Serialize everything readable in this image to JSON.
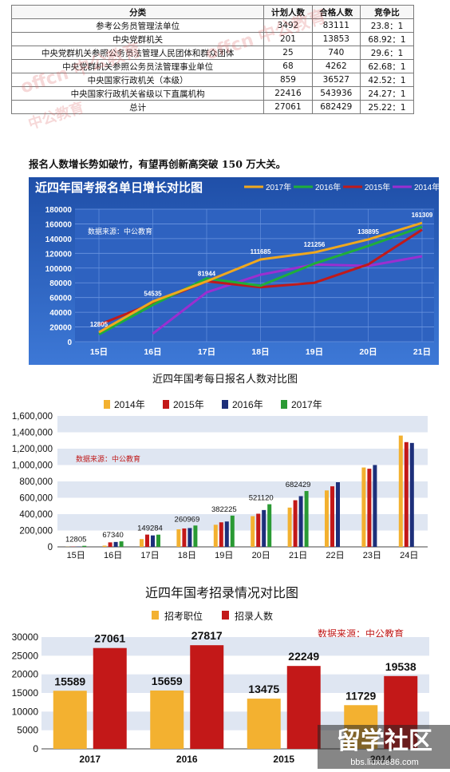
{
  "table": {
    "headers": [
      "分类",
      "计划人数",
      "合格人数",
      "竞争比"
    ],
    "rows": [
      [
        "参考公务员管理法单位",
        "3492",
        "83111",
        "23.8：1"
      ],
      [
        "中央党群机关",
        "201",
        "13853",
        "68.92：1"
      ],
      [
        "中央党群机关参照公务员法管理人民团体和群众团体",
        "25",
        "740",
        "29.6：1"
      ],
      [
        "中央党群机关参照公务员法管理事业单位",
        "68",
        "4262",
        "62.68：1"
      ],
      [
        "中央国家行政机关（本级）",
        "859",
        "36527",
        "42.52：1"
      ],
      [
        "中央国家行政机关省级以下直属机构",
        "22416",
        "543936",
        "24.27：1"
      ],
      [
        "总计",
        "27061",
        "682429",
        "25.22：1"
      ]
    ],
    "watermarks": [
      "offcn 中公教育",
      "offcn 中公教育",
      "中公教育"
    ]
  },
  "headline": "报名人数增长势如破竹，有望再创新高突破 150 万大关。",
  "chart_data": [
    {
      "type": "line",
      "title": "近四年国考报名单日增长对比图",
      "source_note": "数据来源：中公教育",
      "categories": [
        "15日",
        "16日",
        "17日",
        "18日",
        "19日",
        "20日",
        "21日"
      ],
      "ylim": [
        0,
        180000
      ],
      "yticks": [
        "0",
        "20000",
        "40000",
        "60000",
        "80000",
        "100000",
        "120000",
        "140000",
        "160000",
        "180000"
      ],
      "series": [
        {
          "name": "2017年",
          "color": "#f0a81e",
          "values": [
            12805,
            54535,
            81944,
            111685,
            121256,
            138895,
            161309
          ]
        },
        {
          "name": "2016年",
          "color": "#1fae3a",
          "values": [
            10000,
            50000,
            86000,
            76000,
            106000,
            130000,
            156000
          ]
        },
        {
          "name": "2015年",
          "color": "#c01a1a",
          "values": [
            23000,
            52000,
            82000,
            74000,
            80000,
            105000,
            152000
          ]
        },
        {
          "name": "2014年",
          "color": "#9b2fd0",
          "values": [
            null,
            11000,
            67000,
            91000,
            105000,
            103000,
            116000
          ]
        }
      ],
      "data_labels": [
        "12805",
        "54535",
        "81944",
        "111685",
        "121256",
        "138895",
        "161309"
      ]
    },
    {
      "type": "bar",
      "title": "近四年国考每日报名人数对比图",
      "source_note": "数据来源：中公教育",
      "categories": [
        "15日",
        "16日",
        "17日",
        "18日",
        "19日",
        "20日",
        "21日",
        "22日",
        "23日",
        "24日"
      ],
      "ylim": [
        0,
        1600000
      ],
      "yticks": [
        "0",
        "200,000",
        "400,000",
        "600,000",
        "800,000",
        "1,000,000",
        "1,200,000",
        "1,400,000",
        "1,600,000"
      ],
      "series": [
        {
          "name": "2014年",
          "color": "#f3b130",
          "values": [
            2000,
            15000,
            95000,
            215000,
            270000,
            375000,
            480000,
            690000,
            970000,
            1360000
          ]
        },
        {
          "name": "2015年",
          "color": "#c31818",
          "values": [
            3000,
            55000,
            150000,
            225000,
            300000,
            405000,
            570000,
            740000,
            955000,
            1280000
          ]
        },
        {
          "name": "2016年",
          "color": "#1d2f7a",
          "values": [
            4000,
            60000,
            140000,
            230000,
            310000,
            450000,
            620000,
            790000,
            1000000,
            1270000
          ]
        },
        {
          "name": "2017年",
          "color": "#2a9a34",
          "values": [
            12805,
            67340,
            149284,
            260969,
            382225,
            521120,
            682429,
            null,
            null,
            null
          ]
        }
      ],
      "data_labels": [
        "12805",
        "67340",
        "149284",
        "260969",
        "382225",
        "521120",
        "682429"
      ]
    },
    {
      "type": "bar",
      "title": "近四年国考招录情况对比图",
      "source_note": "数据来源：中公教育",
      "categories": [
        "2017",
        "2016",
        "2015",
        "2014"
      ],
      "ylim": [
        0,
        30000
      ],
      "yticks": [
        "0",
        "5000",
        "10000",
        "15000",
        "20000",
        "25000",
        "30000"
      ],
      "series": [
        {
          "name": "招考职位",
          "color": "#f3b130",
          "values": [
            15589,
            15659,
            13475,
            11729
          ]
        },
        {
          "name": "招录人数",
          "color": "#c31818",
          "values": [
            27061,
            27817,
            22249,
            19538
          ]
        }
      ]
    }
  ],
  "footer_watermark": "留学社区",
  "footer_url": "bbs.liuxue86.com"
}
